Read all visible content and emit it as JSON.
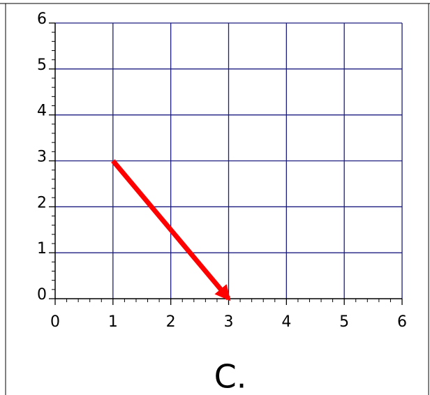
{
  "chart_data": {
    "type": "vector",
    "annotation": "C.",
    "series": [
      {
        "color": "#ff0000",
        "x": [
          1,
          3
        ],
        "y": [
          3,
          0
        ]
      }
    ],
    "xlim": [
      0,
      6
    ],
    "ylim": [
      0,
      6
    ],
    "xticks": [
      0,
      1,
      2,
      3,
      4,
      5,
      6
    ],
    "yticks": [
      0,
      1,
      2,
      3,
      4,
      5,
      6
    ],
    "xminorticks": [
      0.2,
      0.4,
      0.6,
      0.8,
      1.2,
      1.4,
      1.6,
      1.8,
      2.2,
      2.4,
      2.6,
      2.8,
      3.2,
      3.4,
      3.6,
      3.8,
      4.2,
      4.4,
      4.6,
      4.8,
      5.2,
      5.4,
      5.6,
      5.8
    ],
    "yminorticks": [
      0.2,
      0.4,
      0.6,
      0.8,
      1.2,
      1.4,
      1.6,
      1.8,
      2.2,
      2.4,
      2.6,
      2.8,
      3.2,
      3.4,
      3.6,
      3.8,
      4.2,
      4.4,
      4.6,
      4.8,
      5.2,
      5.4,
      5.6,
      5.8
    ],
    "grid": true,
    "grid_color": "#1c1c80"
  }
}
